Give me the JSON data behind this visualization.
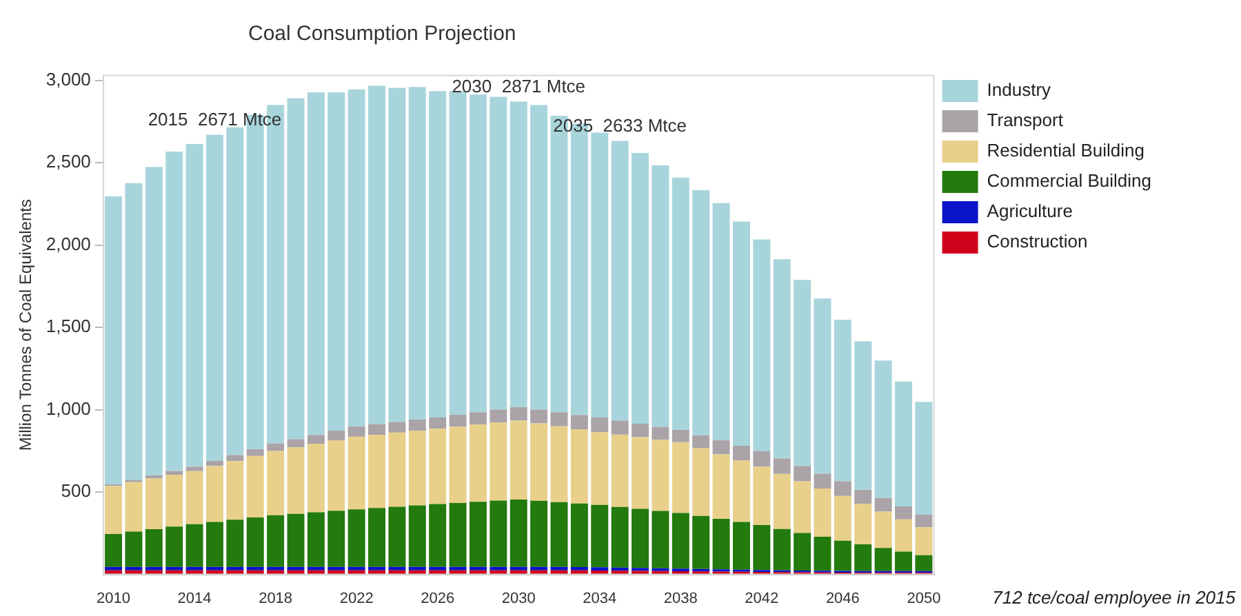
{
  "chart_data": {
    "type": "bar",
    "title": "Coal Consumption Projection",
    "ylabel": "Million Tonnes of Coal Equivalents",
    "stacked": true,
    "x": [
      2010,
      2011,
      2012,
      2013,
      2014,
      2015,
      2016,
      2017,
      2018,
      2019,
      2020,
      2021,
      2022,
      2023,
      2024,
      2025,
      2026,
      2027,
      2028,
      2029,
      2030,
      2031,
      2032,
      2033,
      2034,
      2035,
      2036,
      2037,
      2038,
      2039,
      2040,
      2041,
      2042,
      2043,
      2044,
      2045,
      2046,
      2047,
      2048,
      2049,
      2050
    ],
    "xlim": [
      2009.5,
      2050.5
    ],
    "xticks": [
      2010,
      2014,
      2018,
      2022,
      2026,
      2030,
      2034,
      2038,
      2042,
      2046,
      2050
    ],
    "ylim": [
      0,
      3030
    ],
    "yticks": [
      {
        "value": 500,
        "label": "500"
      },
      {
        "value": 1000,
        "label": "1,000"
      },
      {
        "value": 1500,
        "label": "1,500"
      },
      {
        "value": 2000,
        "label": "2,000"
      },
      {
        "value": 2500,
        "label": "2,500"
      },
      {
        "value": 3000,
        "label": "3,000"
      }
    ],
    "grid": false,
    "legend": "top right",
    "series": [
      {
        "name": "Construction",
        "color": "#d0021b",
        "values": [
          25,
          25,
          25,
          25,
          25,
          25,
          25,
          25,
          25,
          25,
          25,
          25,
          25,
          25,
          25,
          25,
          25,
          25,
          25,
          25,
          25,
          25,
          25,
          24,
          23,
          22,
          21,
          20,
          19,
          18,
          17,
          16,
          15,
          14,
          13,
          12,
          11,
          10,
          10,
          10,
          10
        ]
      },
      {
        "name": "Agriculture",
        "color": "#0a14c8",
        "values": [
          20,
          20,
          20,
          20,
          20,
          20,
          20,
          20,
          20,
          20,
          20,
          20,
          20,
          20,
          20,
          20,
          20,
          20,
          20,
          20,
          20,
          20,
          20,
          20,
          20,
          19,
          18,
          17,
          16,
          15,
          14,
          13,
          12,
          11,
          10,
          10,
          10,
          10,
          10,
          10,
          10
        ]
      },
      {
        "name": "Commercial Building",
        "color": "#237a0d",
        "values": [
          200,
          215,
          230,
          245,
          260,
          274,
          287,
          301,
          314,
          323,
          332,
          341,
          350,
          358,
          366,
          374,
          382,
          389,
          396,
          403,
          410,
          402,
          394,
          386,
          379,
          369,
          359,
          348,
          338,
          322,
          306,
          289,
          273,
          251,
          229,
          206,
          183,
          162,
          140,
          119,
          97
        ]
      },
      {
        "name": "Residential Building",
        "color": "#e8d08a",
        "values": [
          292,
          300,
          307,
          315,
          322,
          339,
          356,
          373,
          390,
          403,
          416,
          428,
          441,
          445,
          450,
          454,
          458,
          463,
          469,
          474,
          479,
          470,
          461,
          451,
          442,
          439,
          436,
          433,
          430,
          411,
          392,
          373,
          354,
          334,
          313,
          293,
          272,
          246,
          221,
          195,
          169
        ]
      },
      {
        "name": "Transport",
        "color": "#aaa3a8",
        "values": [
          10,
          14,
          19,
          23,
          27,
          32,
          37,
          41,
          46,
          50,
          54,
          59,
          63,
          64,
          65,
          67,
          68,
          72,
          75,
          79,
          82,
          84,
          85,
          87,
          89,
          85,
          81,
          78,
          74,
          79,
          85,
          90,
          95,
          94,
          93,
          91,
          90,
          86,
          83,
          79,
          76
        ]
      },
      {
        "name": "Industry",
        "color": "#a8d5dc",
        "values": [
          1749,
          1803,
          1874,
          1940,
          1960,
          1981,
          1990,
          2031,
          2056,
          2071,
          2081,
          2055,
          2047,
          2056,
          2029,
          2020,
          1982,
          1966,
          1929,
          1900,
          1855,
          1849,
          1801,
          1769,
          1730,
          1699,
          1645,
          1588,
          1533,
          1489,
          1441,
          1362,
          1285,
          1210,
          1131,
          1063,
          981,
          902,
          835,
          758,
          686
        ]
      }
    ],
    "annotations": [
      {
        "text": "2015  2671 Mtce",
        "x": 2015,
        "y": 2671
      },
      {
        "text": "2030  2871 Mtce",
        "x": 2030,
        "y": 2871
      },
      {
        "text": "2035  2633 Mtce",
        "x": 2035,
        "y": 2633
      },
      "712 tce/coal employee in 2015"
    ]
  }
}
